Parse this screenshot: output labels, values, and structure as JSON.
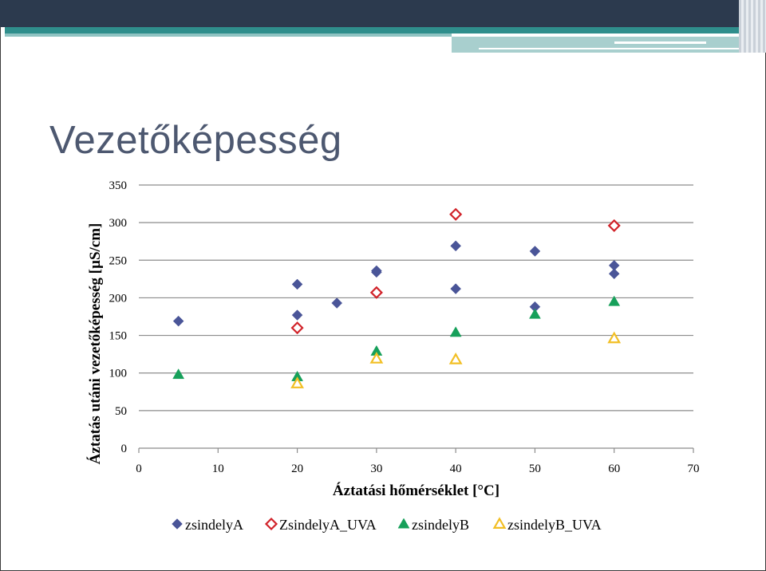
{
  "slide": {
    "title": "Vezetőképesség"
  },
  "chart_data": {
    "type": "scatter",
    "xlabel": "Áztatási hőmérséklet [°C]",
    "ylabel": "Áztatás utáni vezetőképesség [µS/cm]",
    "xlim": [
      0,
      70
    ],
    "ylim": [
      0,
      350
    ],
    "x_ticks": [
      0,
      10,
      20,
      30,
      40,
      50,
      60,
      70
    ],
    "y_ticks": [
      0,
      50,
      100,
      150,
      200,
      250,
      300,
      350
    ],
    "grid": "horizontal",
    "legend_position": "bottom",
    "series": [
      {
        "name": "zsindelyA",
        "marker": "diamond-filled",
        "color": "#4a5598",
        "points": [
          [
            5,
            169
          ],
          [
            20,
            218
          ],
          [
            20,
            177
          ],
          [
            25,
            193
          ],
          [
            30,
            236
          ],
          [
            30,
            234
          ],
          [
            40,
            269
          ],
          [
            40,
            212
          ],
          [
            50,
            262
          ],
          [
            50,
            188
          ],
          [
            60,
            243
          ],
          [
            60,
            232
          ]
        ]
      },
      {
        "name": "ZsindelyA_UVA",
        "marker": "diamond-open",
        "color": "#d1232a",
        "points": [
          [
            20,
            160
          ],
          [
            30,
            207
          ],
          [
            40,
            311
          ],
          [
            60,
            296
          ]
        ]
      },
      {
        "name": "zsindelyB",
        "marker": "triangle-filled",
        "color": "#16a05a",
        "points": [
          [
            5,
            98
          ],
          [
            20,
            95
          ],
          [
            30,
            129
          ],
          [
            40,
            154
          ],
          [
            50,
            178
          ],
          [
            60,
            195
          ]
        ]
      },
      {
        "name": "zsindelyB_UVA",
        "marker": "triangle-open",
        "color": "#f2bf24",
        "points": [
          [
            20,
            86
          ],
          [
            30,
            119
          ],
          [
            40,
            118
          ],
          [
            60,
            146
          ]
        ]
      }
    ]
  }
}
